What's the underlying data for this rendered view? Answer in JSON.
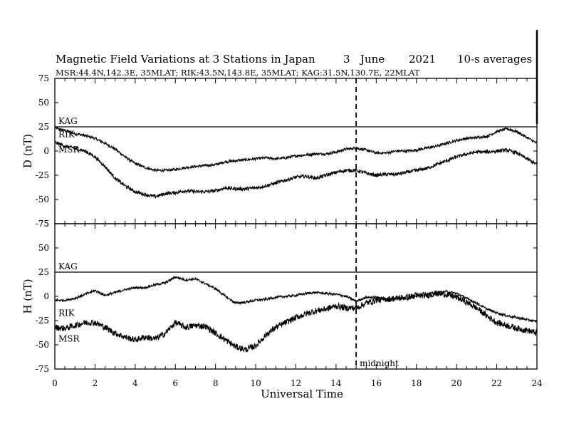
{
  "title": {
    "main": "Magnetic Field Variations at 3 Stations in Japan",
    "day": "3",
    "month": "June",
    "year": "2021",
    "averaging": "10-s averages"
  },
  "subtitle": "MSR:44.4N,142.3E, 35MLAT;  RIK:43.5N,143.8E, 35MLAT;  KAG:31.5N,130.7E, 22MLAT",
  "xlabel": "Universal Time",
  "midnight_label": "midnight",
  "chart_data": [
    {
      "type": "line",
      "ylabel": "D (nT)",
      "xlabel": "Universal Time",
      "xlim": [
        0,
        24
      ],
      "ylim": [
        -75,
        75
      ],
      "yticks": [
        75,
        50,
        25,
        0,
        -25,
        -50,
        -75
      ],
      "xticks": [
        0,
        2,
        4,
        6,
        8,
        10,
        12,
        14,
        16,
        18,
        20,
        22,
        24
      ],
      "minor_xtick_step": 0.5,
      "reference_line_x": 15,
      "series": [
        {
          "name": "KAG",
          "x": [
            0,
            24
          ],
          "y": [
            25,
            25
          ],
          "noise": 0
        },
        {
          "name": "RIK",
          "x": [
            0,
            0.5,
            1,
            1.5,
            2,
            2.5,
            3,
            3.5,
            4,
            4.5,
            5,
            5.5,
            6,
            6.5,
            7,
            7.5,
            8,
            8.5,
            9,
            9.5,
            10,
            10.5,
            11,
            11.5,
            12,
            12.5,
            13,
            13.5,
            14,
            14.5,
            15,
            15.5,
            16,
            16.5,
            17,
            17.5,
            18,
            18.5,
            19,
            19.5,
            20,
            20.5,
            21,
            21.5,
            22,
            22.5,
            23,
            23.5,
            24
          ],
          "y": [
            24,
            21,
            18,
            16,
            13,
            8,
            2,
            -6,
            -13,
            -17,
            -20,
            -20,
            -19,
            -17,
            -16,
            -15,
            -14,
            -11,
            -10,
            -9,
            -8,
            -7,
            -8,
            -7,
            -5,
            -4,
            -3,
            -3,
            -1,
            2,
            3,
            1,
            -2,
            -2,
            0,
            0,
            1,
            3,
            5,
            8,
            11,
            13,
            14,
            15,
            20,
            23,
            20,
            14,
            8
          ],
          "noise": 1.4
        },
        {
          "name": "MSR",
          "x": [
            0,
            0.5,
            1,
            1.5,
            2,
            2.5,
            3,
            3.5,
            4,
            4.5,
            5,
            5.5,
            6,
            6.5,
            7,
            7.5,
            8,
            8.5,
            9,
            9.5,
            10,
            10.5,
            11,
            11.5,
            12,
            12.5,
            13,
            13.5,
            14,
            14.5,
            15,
            15.5,
            16,
            16.5,
            17,
            17.5,
            18,
            18.5,
            19,
            19.5,
            20,
            20.5,
            21,
            21.5,
            22,
            22.5,
            23,
            23.5,
            24
          ],
          "y": [
            9,
            5,
            3,
            0,
            -6,
            -16,
            -28,
            -36,
            -42,
            -45,
            -47,
            -44,
            -43,
            -41,
            -42,
            -42,
            -41,
            -38,
            -39,
            -39,
            -38,
            -36,
            -33,
            -30,
            -27,
            -26,
            -28,
            -25,
            -22,
            -20,
            -20,
            -23,
            -25,
            -24,
            -24,
            -22,
            -20,
            -18,
            -14,
            -10,
            -6,
            -3,
            -1,
            -1,
            0,
            1,
            -2,
            -8,
            -14
          ],
          "noise": 1.8
        }
      ]
    },
    {
      "type": "line",
      "ylabel": "H (nT)",
      "xlabel": "Universal Time",
      "xlim": [
        0,
        24
      ],
      "ylim": [
        -75,
        75
      ],
      "yticks": [
        75,
        50,
        25,
        0,
        -25,
        -50,
        -75
      ],
      "xticks": [
        0,
        2,
        4,
        6,
        8,
        10,
        12,
        14,
        16,
        18,
        20,
        22,
        24
      ],
      "minor_xtick_step": 0.5,
      "reference_line_x": 15,
      "series": [
        {
          "name": "KAG",
          "x": [
            0,
            24
          ],
          "y": [
            25,
            25
          ],
          "noise": 0
        },
        {
          "name": "RIK",
          "x": [
            0,
            0.5,
            1,
            1.5,
            2,
            2.5,
            3,
            3.5,
            4,
            4.5,
            5,
            5.5,
            6,
            6.5,
            7,
            7.5,
            8,
            8.5,
            9,
            9.5,
            10,
            10.5,
            11,
            11.5,
            12,
            12.5,
            13,
            13.5,
            14,
            14.5,
            15,
            15.5,
            16,
            16.5,
            17,
            17.5,
            18,
            18.5,
            19,
            19.5,
            20,
            20.5,
            21,
            21.5,
            22,
            22.5,
            23,
            23.5,
            24
          ],
          "y": [
            -4,
            -4,
            -2,
            2,
            6,
            1,
            4,
            7,
            9,
            9,
            12,
            14,
            20,
            17,
            18,
            13,
            8,
            0,
            -7,
            -6,
            -4,
            -3,
            -1,
            0,
            1,
            3,
            4,
            3,
            2,
            0,
            -5,
            -1,
            -1,
            -3,
            -2,
            -2,
            0,
            2,
            4,
            5,
            3,
            -2,
            -7,
            -13,
            -17,
            -20,
            -22,
            -24,
            -26
          ],
          "noise": 1.2
        },
        {
          "name": "MSR",
          "x": [
            0,
            0.5,
            1,
            1.5,
            2,
            2.5,
            3,
            3.5,
            4,
            4.5,
            5,
            5.5,
            6,
            6.5,
            7,
            7.5,
            8,
            8.5,
            9,
            9.5,
            10,
            10.5,
            11,
            11.5,
            12,
            12.5,
            13,
            13.5,
            14,
            14.5,
            15,
            15.5,
            16,
            16.5,
            17,
            17.5,
            18,
            18.5,
            19,
            19.5,
            20,
            20.5,
            21,
            21.5,
            22,
            22.5,
            23,
            23.5,
            24
          ],
          "y": [
            -32,
            -33,
            -30,
            -27,
            -27,
            -32,
            -38,
            -42,
            -45,
            -42,
            -44,
            -38,
            -27,
            -32,
            -30,
            -31,
            -38,
            -45,
            -52,
            -55,
            -51,
            -40,
            -32,
            -27,
            -22,
            -18,
            -15,
            -13,
            -10,
            -12,
            -12,
            -7,
            -4,
            -3,
            -2,
            -1,
            1,
            1,
            3,
            2,
            -1,
            -6,
            -12,
            -20,
            -27,
            -30,
            -33,
            -35,
            -38
          ],
          "noise": 3.2
        }
      ]
    }
  ]
}
